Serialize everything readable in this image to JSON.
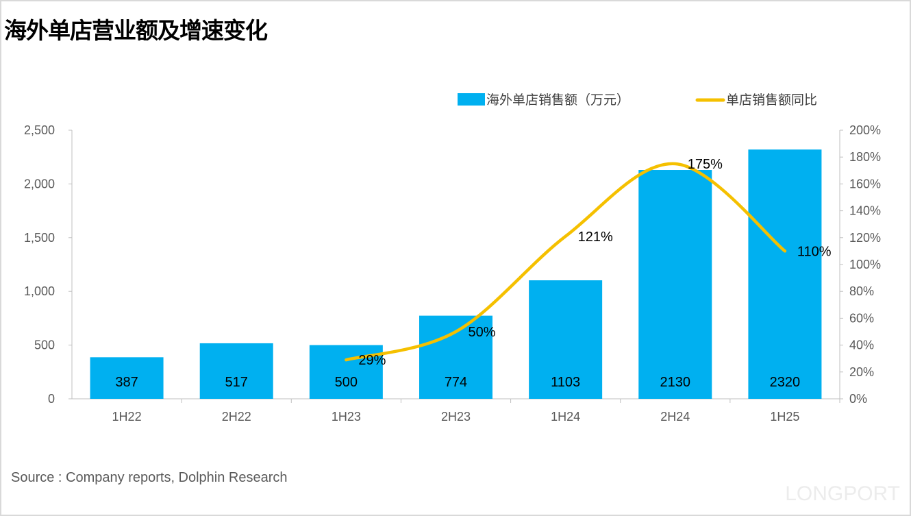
{
  "title": "海外单店营业额及增速变化",
  "source": "Source : Company reports, Dolphin Research",
  "watermark": "LONGPORT",
  "chart_data": {
    "type": "bar+line",
    "title": "海外单店营业额及增速变化",
    "categories": [
      "1H22",
      "2H22",
      "1H23",
      "2H23",
      "1H24",
      "2H24",
      "1H25"
    ],
    "series": [
      {
        "name": "海外单店销售额（万元）",
        "type": "bar",
        "axis": "left",
        "color": "#00B0F0",
        "values": [
          387,
          517,
          500,
          774,
          1103,
          2130,
          2320
        ],
        "labels": [
          "387",
          "517",
          "500",
          "774",
          "1103",
          "2130",
          "2320"
        ]
      },
      {
        "name": "单店销售额同比",
        "type": "line",
        "axis": "right",
        "color": "#F5C000",
        "values": [
          null,
          null,
          29,
          50,
          121,
          175,
          110
        ],
        "labels": [
          null,
          null,
          "29%",
          "50%",
          "121%",
          "175%",
          "110%"
        ]
      }
    ],
    "left_axis": {
      "range": [
        0,
        2500
      ],
      "ticks": [
        "0",
        "500",
        "1,000",
        "1,500",
        "2,000",
        "2,500"
      ]
    },
    "right_axis": {
      "range": [
        0,
        200
      ],
      "ticks": [
        "0%",
        "20%",
        "40%",
        "60%",
        "80%",
        "100%",
        "120%",
        "140%",
        "160%",
        "180%",
        "200%"
      ]
    },
    "grid": false,
    "legend": "top-right"
  }
}
